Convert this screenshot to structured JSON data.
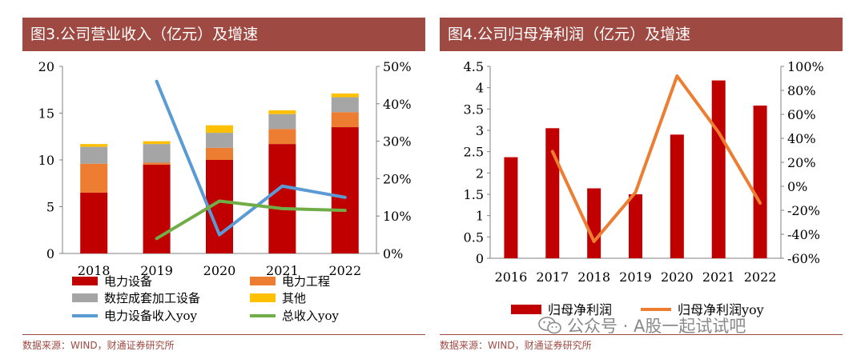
{
  "colors": {
    "header": "#9e4a42",
    "dark_red": "#c00000",
    "orange": "#ed7d31",
    "gray": "#a5a5a5",
    "yellow": "#ffc000",
    "blue": "#5b9bd5",
    "green": "#70ad47"
  },
  "watermark": {
    "icon": "wechat-icon",
    "text": "公众号 · A股一起试试吧"
  },
  "chart_data": [
    {
      "type": "bar",
      "stacked": true,
      "title": "图3.公司营业收入（亿元）及增速",
      "source": "数据来源：WIND，财通证券研究所",
      "categories": [
        "2018",
        "2019",
        "2020",
        "2021",
        "2022"
      ],
      "ylim": [
        0,
        20
      ],
      "yticks": [
        0,
        5,
        10,
        15,
        20
      ],
      "y2lim": [
        0,
        50
      ],
      "y2ticks": [
        "0%",
        "10%",
        "20%",
        "30%",
        "40%",
        "50%"
      ],
      "series": [
        {
          "name": "电力设备",
          "kind": "bar",
          "color": "#c00000",
          "values": [
            6.5,
            9.5,
            10.0,
            11.7,
            13.5
          ]
        },
        {
          "name": "电力工程",
          "kind": "bar",
          "color": "#ed7d31",
          "values": [
            3.1,
            0.2,
            1.3,
            1.6,
            1.6
          ]
        },
        {
          "name": "数控成套加工设备",
          "kind": "bar",
          "color": "#a5a5a5",
          "values": [
            1.8,
            2.0,
            1.6,
            1.6,
            1.6
          ]
        },
        {
          "name": "其他",
          "kind": "bar",
          "color": "#ffc000",
          "values": [
            0.3,
            0.3,
            0.8,
            0.4,
            0.4
          ]
        },
        {
          "name": "电力设备收入yoy",
          "kind": "line",
          "axis": "right",
          "color": "#5b9bd5",
          "values": [
            null,
            46,
            5,
            18,
            15
          ]
        },
        {
          "name": "总收入yoy",
          "kind": "line",
          "axis": "right",
          "color": "#70ad47",
          "values": [
            null,
            4,
            14,
            12,
            11.5
          ]
        }
      ]
    },
    {
      "type": "bar",
      "title": "图4.公司归母净利润（亿元）及增速",
      "source": "数据来源：WIND，财通证券研究所",
      "categories": [
        "2016",
        "2017",
        "2018",
        "2019",
        "2020",
        "2021",
        "2022"
      ],
      "ylim": [
        0,
        4.5
      ],
      "yticks": [
        "0",
        "0.5",
        "1",
        "1.5",
        "2",
        "2.5",
        "3",
        "3.5",
        "4",
        "4.5"
      ],
      "y2lim": [
        -60,
        100
      ],
      "y2ticks": [
        "-60%",
        "-40%",
        "-20%",
        "0%",
        "20%",
        "40%",
        "60%",
        "80%",
        "100%"
      ],
      "series": [
        {
          "name": "归母净利润",
          "kind": "bar",
          "color": "#c00000",
          "values": [
            2.37,
            3.05,
            1.64,
            1.5,
            2.9,
            4.17,
            3.58
          ]
        },
        {
          "name": "归母净利润yoy",
          "kind": "line",
          "axis": "right",
          "color": "#ed7d31",
          "values": [
            null,
            29,
            -46,
            -5,
            92,
            45,
            -14
          ]
        }
      ]
    }
  ]
}
